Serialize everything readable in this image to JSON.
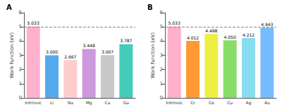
{
  "chart_data": [
    {
      "type": "bar",
      "title": "A",
      "categories": [
        "Intrinsic",
        "Li",
        "Na",
        "Mg",
        "Ca",
        "Ga"
      ],
      "values": [
        5.033,
        3.0,
        2.667,
        3.448,
        3.007,
        3.787
      ],
      "value_labels": [
        "5.033",
        "3.000",
        "2.667",
        "3.448",
        "3.007",
        "3.787"
      ],
      "colors": [
        "#FFB0CC",
        "#55AAEE",
        "#FFCCCC",
        "#CC99DD",
        "#C8C8C8",
        "#44CCBB"
      ],
      "reference_line": 5.0,
      "ylabel": "Work function (eV)",
      "ylim": [
        0,
        6
      ],
      "yticks": [
        0,
        1,
        2,
        3,
        4,
        5,
        6
      ],
      "grid": false,
      "data_labels": true
    },
    {
      "type": "bar",
      "title": "B",
      "categories": [
        "Intrinsic",
        "Cr",
        "Co",
        "Cu",
        "Ag",
        "Au"
      ],
      "values": [
        5.033,
        4.012,
        4.498,
        4.05,
        4.212,
        4.943
      ],
      "value_labels": [
        "5.033",
        "4.012",
        "4.498",
        "4.050",
        "4.212",
        "4.943"
      ],
      "colors": [
        "#FFB0CC",
        "#FF9933",
        "#EEEE44",
        "#88DD66",
        "#88DDEE",
        "#77BBFF"
      ],
      "reference_line": 5.0,
      "ylabel": "Work function (eV)",
      "ylim": [
        0,
        6
      ],
      "yticks": [
        0,
        1,
        2,
        3,
        4,
        5,
        6
      ],
      "grid": false,
      "data_labels": true
    }
  ]
}
